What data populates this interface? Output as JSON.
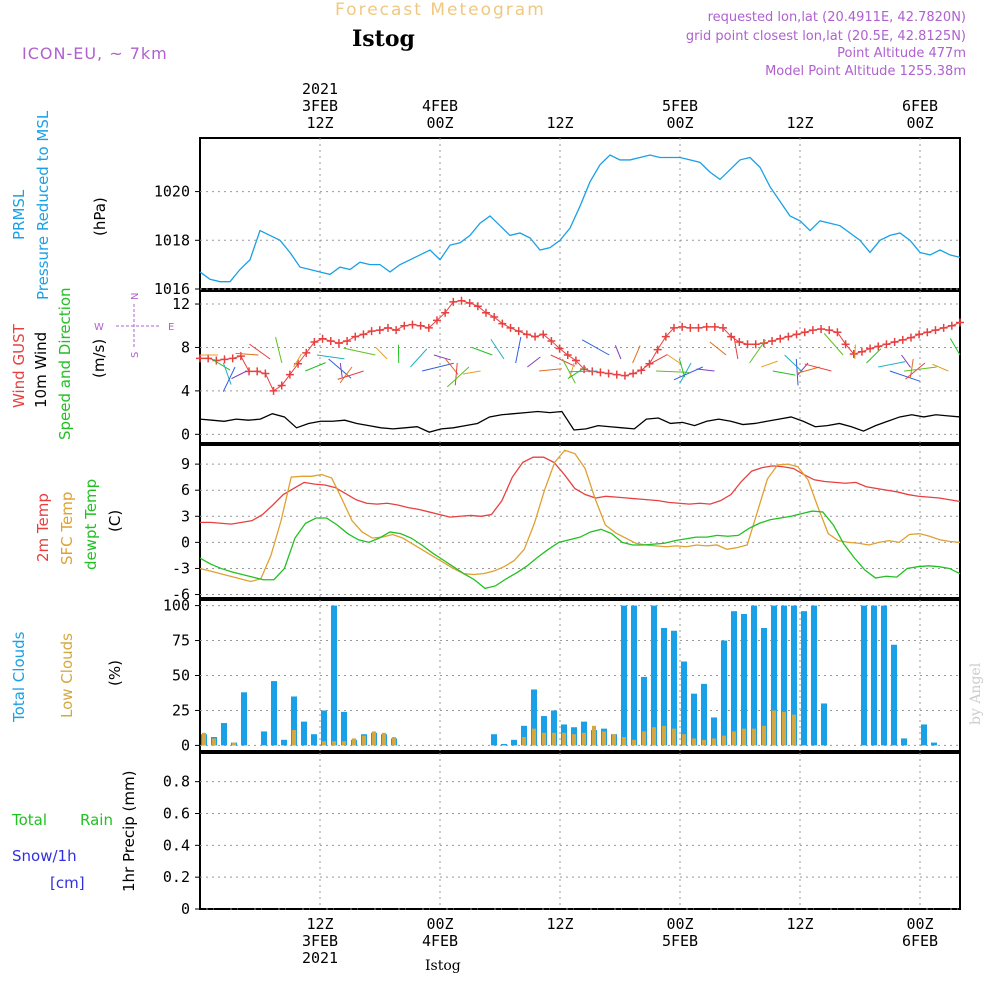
{
  "header": {
    "forecast_title": "Forecast Meteogram",
    "location": "Istog",
    "model": "ICON-EU, ~ 7km",
    "requested": "requested lon,lat (20.4911E, 42.7820N)",
    "grid_point": "grid point closest lon,lat (20.5E, 42.8125N)",
    "point_altitude": "Point Altitude 477m",
    "model_altitude": "Model Point Altitude 1255.38m",
    "watermark": "by Angel",
    "footer_location": "Istog"
  },
  "time_axis": {
    "top_labels": [
      {
        "h": 12,
        "lines": [
          "2021",
          "3FEB",
          "12Z"
        ]
      },
      {
        "h": 24,
        "lines": [
          "4FEB",
          "00Z"
        ]
      },
      {
        "h": 36,
        "lines": [
          "12Z"
        ]
      },
      {
        "h": 48,
        "lines": [
          "5FEB",
          "00Z"
        ]
      },
      {
        "h": 60,
        "lines": [
          "12Z"
        ]
      },
      {
        "h": 72,
        "lines": [
          "6FEB",
          "00Z"
        ]
      }
    ],
    "bottom_labels": [
      {
        "h": 12,
        "lines": [
          "12Z",
          "3FEB",
          "2021"
        ]
      },
      {
        "h": 24,
        "lines": [
          "00Z",
          "4FEB"
        ]
      },
      {
        "h": 36,
        "lines": [
          "12Z"
        ]
      },
      {
        "h": 48,
        "lines": [
          "00Z",
          "5FEB"
        ]
      },
      {
        "h": 60,
        "lines": [
          "12Z"
        ]
      },
      {
        "h": 72,
        "lines": [
          "00Z",
          "6FEB"
        ]
      }
    ]
  },
  "colors": {
    "pressure": "#1aa0e6",
    "gust": "#e84040",
    "wind": "#000000",
    "temp2m": "#e84040",
    "sfc": "#e0a030",
    "dewpt": "#22c022",
    "total_cloud": "#1aa0e6",
    "low_cloud": "#d4a840",
    "rain": "#22c022",
    "snow": "#3030e0",
    "title": "#f0c880",
    "meta": "#b060d0",
    "loc": "#000000"
  },
  "panels": {
    "pressure": {
      "label1": "PRMSL",
      "label2": "Pressure Reduced to MSL",
      "unit": "(hPa)"
    },
    "wind": {
      "label_gust": "Wind GUST",
      "label_wind": "10m Wind",
      "label_speed": "Speed and Direction",
      "unit": "(m/s)",
      "compass_n": "N",
      "compass_s": "S",
      "compass_w": "W",
      "compass_e": "E"
    },
    "temp": {
      "label_2m": "2m Temp",
      "label_sfc": "SFC Temp",
      "label_dew": "dewpt Temp",
      "unit": "(C)"
    },
    "clouds": {
      "label_total": "Total Clouds",
      "label_low": "Low Clouds",
      "unit": "(%)"
    },
    "precip": {
      "label_total": "Total",
      "label_rain": "Rain",
      "label_snow": "Snow/1h",
      "label_cm": "[cm]",
      "unit": "1hr Precip (mm)"
    }
  },
  "chart_data": [
    {
      "type": "line",
      "title": "",
      "ylabel": "(hPa)",
      "ylim": [
        1016,
        1022.2
      ],
      "yticks": [
        1016,
        1018,
        1020
      ],
      "x_hours": [
        0,
        1,
        2,
        3,
        4,
        5,
        6,
        7,
        8,
        9,
        10,
        11,
        12,
        13,
        14,
        15,
        16,
        17,
        18,
        19,
        20,
        21,
        22,
        23,
        24,
        25,
        26,
        27,
        28,
        29,
        30,
        31,
        32,
        33,
        34,
        35,
        36,
        37,
        38,
        39,
        40,
        41,
        42,
        43,
        44,
        45,
        46,
        47,
        48,
        49,
        50,
        51,
        52,
        53,
        54,
        55,
        56,
        57,
        58,
        59,
        60,
        61,
        62,
        63,
        64,
        65,
        66,
        67,
        68,
        69,
        70,
        71,
        72,
        73,
        74,
        75,
        76
      ],
      "series": [
        {
          "name": "PRMSL",
          "values": [
            1016.7,
            1016.4,
            1016.3,
            1016.3,
            1016.8,
            1017.2,
            1018.4,
            1018.2,
            1018.0,
            1017.5,
            1016.9,
            1016.8,
            1016.7,
            1016.6,
            1016.9,
            1016.8,
            1017.1,
            1017.0,
            1017.0,
            1016.7,
            1017.0,
            1017.2,
            1017.4,
            1017.6,
            1017.2,
            1017.8,
            1017.9,
            1018.2,
            1018.7,
            1019.0,
            1018.6,
            1018.2,
            1018.3,
            1018.1,
            1017.6,
            1017.7,
            1018.0,
            1018.5,
            1019.4,
            1020.4,
            1021.1,
            1021.5,
            1021.3,
            1021.3,
            1021.4,
            1021.5,
            1021.4,
            1021.4,
            1021.4,
            1021.3,
            1021.2,
            1020.8,
            1020.5,
            1020.9,
            1021.3,
            1021.4,
            1021.0,
            1020.2,
            1019.6,
            1019.0,
            1018.8,
            1018.4,
            1018.8,
            1018.7,
            1018.6,
            1018.3,
            1018.0,
            1017.5,
            1018.0,
            1018.2,
            1018.3,
            1018.0,
            1017.5,
            1017.4,
            1017.6,
            1017.4,
            1017.3
          ]
        }
      ]
    },
    {
      "type": "line",
      "title": "",
      "ylabel": "(m/s)",
      "ylim": [
        -0.8,
        13.2
      ],
      "yticks": [
        0,
        4,
        8,
        12
      ],
      "series": [
        {
          "name": "Wind GUST",
          "values": [
            7.0,
            7.0,
            6.8,
            6.9,
            7.0,
            7.2,
            5.8,
            5.8,
            5.6,
            4.0,
            4.5,
            5.5,
            6.5,
            7.5,
            8.5,
            8.8,
            8.6,
            8.4,
            8.6,
            9.0,
            9.2,
            9.5,
            9.6,
            9.8,
            9.6,
            10.0,
            10.1,
            10.0,
            9.8,
            10.5,
            11.2,
            12.2,
            12.3,
            12.1,
            11.8,
            11.2,
            10.8,
            10.2,
            9.8,
            9.5,
            9.2,
            9.0,
            9.2,
            8.6,
            7.9,
            7.3,
            6.8,
            6.0,
            5.8,
            5.7,
            5.6,
            5.5,
            5.4,
            5.6,
            5.9,
            6.5,
            7.8,
            9.0,
            9.8,
            9.9,
            9.8,
            9.8,
            9.9,
            9.9,
            9.8,
            9.0,
            8.5,
            8.3,
            8.3,
            8.4,
            8.6,
            8.8,
            9.0,
            9.2,
            9.4,
            9.6,
            9.7,
            9.6,
            9.4,
            8.3,
            7.4,
            7.6,
            7.9,
            8.1,
            8.3,
            8.5,
            8.7,
            8.9,
            9.2,
            9.4,
            9.6,
            9.8,
            10.0,
            10.3
          ]
        },
        {
          "name": "10m Wind",
          "values": [
            1.4,
            1.3,
            1.2,
            1.4,
            1.3,
            1.4,
            1.9,
            1.6,
            0.6,
            1.0,
            1.2,
            1.2,
            1.3,
            1.0,
            0.8,
            0.6,
            0.5,
            0.6,
            0.7,
            0.2,
            0.5,
            0.6,
            0.8,
            1.0,
            1.6,
            1.8,
            1.9,
            2.0,
            2.1,
            2.0,
            2.1,
            0.4,
            0.5,
            0.8,
            0.7,
            0.6,
            0.5,
            1.4,
            1.5,
            1.0,
            1.1,
            0.8,
            1.2,
            1.4,
            1.2,
            0.9,
            1.0,
            1.2,
            1.4,
            1.6,
            1.2,
            0.7,
            0.8,
            1.0,
            0.7,
            0.3,
            0.8,
            1.2,
            1.6,
            1.8,
            1.6,
            1.8,
            1.7,
            1.6
          ]
        }
      ]
    },
    {
      "type": "line",
      "title": "",
      "ylabel": "(C)",
      "ylim": [
        -6.4,
        11.2
      ],
      "yticks": [
        -6,
        -3,
        0,
        3,
        6,
        9
      ],
      "series": [
        {
          "name": "2m Temp",
          "values": [
            2.3,
            2.3,
            2.2,
            2.1,
            2.3,
            2.5,
            3.2,
            4.3,
            5.5,
            6.2,
            6.9,
            6.7,
            6.6,
            6.3,
            5.6,
            4.9,
            4.5,
            4.4,
            4.5,
            4.3,
            4.0,
            3.8,
            3.5,
            3.2,
            2.9,
            3.0,
            3.1,
            3.0,
            3.2,
            4.8,
            7.5,
            9.2,
            9.8,
            9.8,
            9.2,
            7.8,
            6.2,
            5.5,
            5.1,
            5.3,
            5.2,
            5.1,
            5.0,
            4.9,
            4.8,
            4.6,
            4.5,
            4.4,
            4.5,
            4.4,
            4.8,
            5.5,
            7.0,
            8.2,
            8.6,
            8.8,
            8.7,
            8.5,
            7.8,
            7.2,
            7.0,
            6.9,
            6.8,
            6.9,
            6.4,
            6.2,
            6.0,
            5.8,
            5.5,
            5.3,
            5.2,
            5.1,
            4.9,
            4.7
          ]
        },
        {
          "name": "SFC Temp",
          "values": [
            -3.0,
            -3.3,
            -3.6,
            -3.9,
            -4.2,
            -4.5,
            -4.2,
            -1.5,
            2.5,
            7.5,
            7.6,
            7.6,
            7.8,
            7.4,
            5.0,
            2.5,
            1.2,
            0.5,
            0.6,
            0.9,
            0.5,
            -0.2,
            -0.9,
            -1.6,
            -2.3,
            -3.0,
            -3.6,
            -3.7,
            -3.6,
            -3.3,
            -2.8,
            -2.1,
            -0.8,
            2.2,
            6.0,
            9.2,
            10.6,
            10.2,
            8.5,
            5.0,
            2.0,
            1.1,
            0.5,
            -0.1,
            -0.3,
            -0.4,
            -0.5,
            -0.4,
            -0.5,
            -0.3,
            -0.4,
            -0.3,
            -0.8,
            -0.6,
            -0.3,
            3.5,
            7.3,
            8.9,
            9.0,
            8.7,
            7.2,
            4.0,
            1.0,
            0.2,
            0.0,
            -0.1,
            -0.3,
            0.0,
            0.2,
            0.0,
            0.9,
            1.0,
            0.7,
            0.3,
            0.1,
            0.0
          ]
        },
        {
          "name": "dewpt Temp",
          "values": [
            -1.8,
            -2.5,
            -3.0,
            -3.4,
            -3.7,
            -4.0,
            -4.3,
            -4.3,
            -3.0,
            0.5,
            2.2,
            2.8,
            2.8,
            2.0,
            1.0,
            0.3,
            0.0,
            0.5,
            1.2,
            1.0,
            0.5,
            -0.3,
            -1.2,
            -2.0,
            -2.8,
            -3.6,
            -4.3,
            -5.3,
            -5.0,
            -4.2,
            -3.5,
            -2.7,
            -1.7,
            -0.8,
            0.0,
            0.3,
            0.6,
            1.2,
            1.5,
            1.0,
            0.0,
            -0.3,
            -0.3,
            -0.2,
            -0.1,
            0.2,
            0.4,
            0.6,
            0.6,
            0.8,
            0.7,
            0.8,
            1.6,
            2.2,
            2.6,
            2.8,
            3.0,
            3.3,
            3.6,
            3.5,
            2.0,
            -0.2,
            -1.8,
            -3.2,
            -4.1,
            -3.9,
            -4.0,
            -3.0,
            -2.8,
            -2.7,
            -2.8,
            -3.0,
            -3.6
          ]
        }
      ]
    },
    {
      "type": "bar",
      "title": "",
      "ylabel": "(%)",
      "ylim": [
        -4,
        104
      ],
      "yticks": [
        0,
        25,
        50,
        75,
        100
      ],
      "x_hours": [
        0,
        1,
        2,
        3,
        4,
        5,
        6,
        7,
        8,
        9,
        10,
        11,
        12,
        13,
        14,
        15,
        16,
        17,
        18,
        19,
        20,
        21,
        22,
        23,
        24,
        25,
        26,
        27,
        28,
        29,
        30,
        31,
        32,
        33,
        34,
        35,
        36,
        37,
        38,
        39,
        40,
        41,
        42,
        43,
        44,
        45,
        46,
        47,
        48,
        49,
        50,
        51,
        52,
        53,
        54,
        55,
        56,
        57,
        58,
        59,
        60,
        61,
        62,
        63,
        64,
        65,
        66,
        67,
        68,
        69,
        70,
        71,
        72,
        73,
        74,
        75,
        76
      ],
      "series": [
        {
          "name": "Total Clouds",
          "values": [
            8,
            6,
            16,
            2,
            38,
            0,
            10,
            46,
            4,
            35,
            17,
            8,
            25,
            100,
            24,
            4,
            8,
            9,
            8,
            5,
            0,
            0,
            0,
            0,
            0,
            0,
            0,
            0,
            0,
            8,
            1,
            4,
            14,
            40,
            21,
            25,
            15,
            13,
            17,
            11,
            12,
            8,
            100,
            100,
            49,
            100,
            84,
            82,
            60,
            37,
            44,
            20,
            75,
            96,
            94,
            100,
            84,
            100,
            100,
            100,
            96,
            100,
            30,
            0,
            0,
            0,
            100,
            100,
            100,
            72,
            5,
            0,
            15,
            2,
            0,
            0,
            0
          ]
        },
        {
          "name": "Low Clouds",
          "values": [
            9,
            5,
            0,
            2,
            0,
            0,
            0,
            0,
            0,
            11,
            0,
            0,
            3,
            3,
            3,
            5,
            7,
            10,
            9,
            6,
            0,
            0,
            0,
            0,
            0,
            0,
            0,
            0,
            0,
            0,
            0,
            0,
            6,
            12,
            9,
            9,
            9,
            8,
            9,
            14,
            10,
            8,
            6,
            4,
            10,
            13,
            14,
            12,
            8,
            5,
            4,
            5,
            7,
            10,
            12,
            12,
            14,
            25,
            24,
            22,
            0,
            0,
            0,
            0,
            0,
            0,
            0,
            0,
            0,
            0,
            0,
            0,
            0,
            0,
            0,
            0,
            0
          ]
        }
      ]
    },
    {
      "type": "bar",
      "title": "",
      "ylabel": "1hr Precip (mm)",
      "ylim": [
        0,
        0.98
      ],
      "yticks": [
        0,
        0.2,
        0.4,
        0.6,
        0.8
      ],
      "series": [
        {
          "name": "Total Rain",
          "values": []
        },
        {
          "name": "Snow/1h",
          "values": []
        }
      ]
    }
  ]
}
